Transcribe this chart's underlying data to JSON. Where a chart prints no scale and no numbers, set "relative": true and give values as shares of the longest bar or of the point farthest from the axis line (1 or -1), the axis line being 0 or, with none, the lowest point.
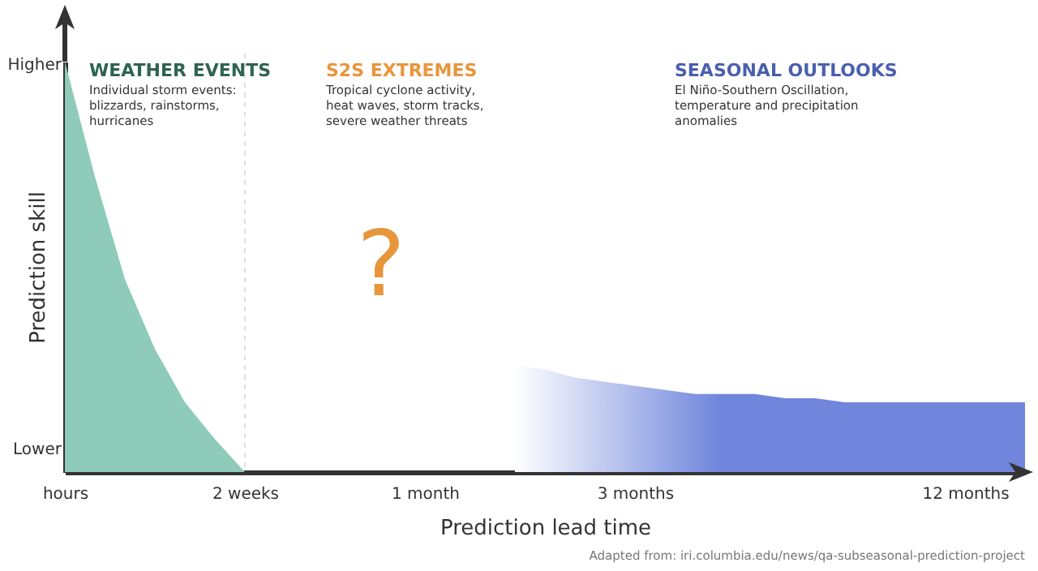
{
  "chart_data": {
    "type": "area",
    "relative": true,
    "xlabel": "Prediction lead time",
    "ylabel": "Prediction skill",
    "categories": [
      "hours",
      null,
      null,
      null,
      null,
      null,
      "2 weeks",
      null,
      null,
      null,
      null,
      null,
      "1 month",
      null,
      null,
      null,
      null,
      null,
      null,
      "3 months",
      null,
      null,
      null,
      null,
      null,
      null,
      null,
      null,
      null,
      null,
      "12 months",
      null,
      null
    ],
    "series": [
      {
        "color": "#8ecbb9",
        "values": [
          1,
          0.72,
          0.47,
          0.3,
          0.17,
          0.08,
          0,
          null,
          null,
          null,
          null,
          null,
          null,
          null,
          null,
          null,
          null,
          null,
          null,
          null,
          null,
          null,
          null,
          null,
          null,
          null,
          null,
          null,
          null,
          null,
          null,
          null,
          null
        ]
      },
      {
        "color": "#7086dc",
        "values": [
          null,
          null,
          null,
          null,
          null,
          null,
          null,
          null,
          null,
          null,
          null,
          null,
          null,
          null,
          null,
          0.26,
          0.25,
          0.23,
          0.22,
          0.21,
          0.2,
          0.19,
          0.19,
          0.19,
          0.18,
          0.18,
          0.17,
          0.17,
          0.17,
          0.17,
          0.17,
          0.17,
          0.17
        ]
      }
    ],
    "ref_lines": [
      {
        "axis": "x",
        "value": "2 weeks",
        "color": "#dddddd",
        "line_style": "dashed"
      }
    ],
    "annotations": [
      "Higher",
      "Lower",
      "WEATHER EVENTS",
      "Individual storm events:\nblizzards, rainstorms,\nhurricanes",
      "S2S EXTREMES",
      "Tropical cyclone activity,\nheat waves, storm tracks,\nsevere weather threats",
      "SEASONAL OUTLOOKS",
      "El Niño-Southern Oscillation,\ntemperature and precipitation\nanomalies",
      "?",
      "Adapted from: iri.columbia.edu/news/qa-subseasonal-prediction-project"
    ],
    "grid": false
  }
}
